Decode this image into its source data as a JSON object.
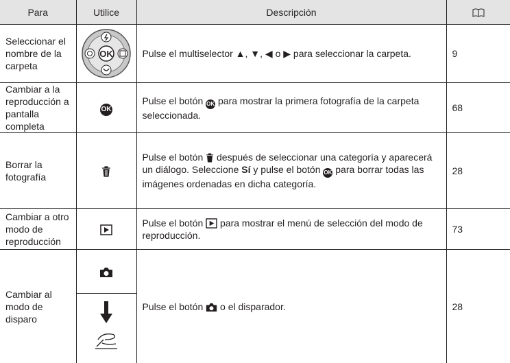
{
  "header": {
    "columns": [
      "Para",
      "Utilice",
      "Descripción"
    ]
  },
  "icons": {
    "ok": "OK"
  },
  "rows": [
    {
      "para": "Seleccionar el nombre de la carpeta",
      "description": [
        "Pulse el multiselector ▲, ▼, ◀ o ▶ para seleccionar la carpeta."
      ],
      "page": "9"
    },
    {
      "para": "Cambiar a la reproducción a pantalla completa",
      "description": [
        "Pulse el botón ",
        " para mostrar la primera fotografía de la carpeta seleccionada."
      ],
      "page": "68"
    },
    {
      "para": "Borrar la fotografía",
      "description": [
        "Pulse el botón ",
        " después de seleccionar una categoría y aparecerá un diálogo. Seleccione ",
        "Sí",
        " y pulse el botón ",
        " para borrar todas las imágenes ordenadas en dicha categoría."
      ],
      "page": "28"
    },
    {
      "para": "Cambiar a otro modo de reproducción",
      "description": [
        "Pulse el botón ",
        " para mostrar el menú de selección del modo de reproducción."
      ],
      "page": "73"
    },
    {
      "para": "Cambiar al modo de disparo",
      "description": [
        "Pulse el botón ",
        " o el disparador."
      ],
      "page": "28"
    }
  ]
}
